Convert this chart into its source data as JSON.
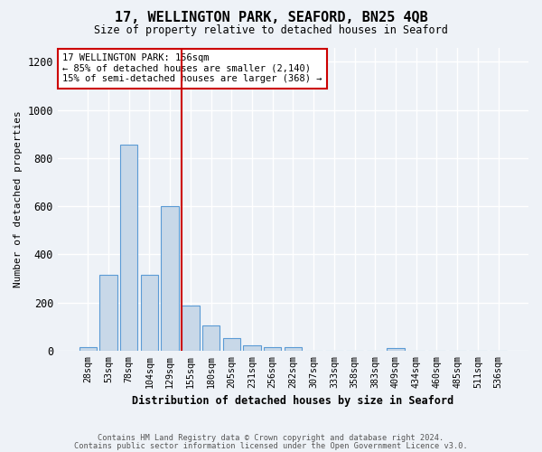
{
  "title": "17, WELLINGTON PARK, SEAFORD, BN25 4QB",
  "subtitle": "Size of property relative to detached houses in Seaford",
  "xlabel": "Distribution of detached houses by size in Seaford",
  "ylabel": "Number of detached properties",
  "footer1": "Contains HM Land Registry data © Crown copyright and database right 2024.",
  "footer2": "Contains public sector information licensed under the Open Government Licence v3.0.",
  "categories": [
    "28sqm",
    "53sqm",
    "78sqm",
    "104sqm",
    "129sqm",
    "155sqm",
    "180sqm",
    "205sqm",
    "231sqm",
    "256sqm",
    "282sqm",
    "307sqm",
    "333sqm",
    "358sqm",
    "383sqm",
    "409sqm",
    "434sqm",
    "460sqm",
    "485sqm",
    "511sqm",
    "536sqm"
  ],
  "values": [
    15,
    315,
    855,
    315,
    600,
    185,
    105,
    50,
    20,
    15,
    15,
    0,
    0,
    0,
    0,
    10,
    0,
    0,
    0,
    0,
    0
  ],
  "bar_color": "#c8d8e8",
  "bar_edge_color": "#5b9bd5",
  "highlight_bar_index": 5,
  "highlight_line_color": "#cc0000",
  "annotation_text": "17 WELLINGTON PARK: 156sqm\n← 85% of detached houses are smaller (2,140)\n15% of semi-detached houses are larger (368) →",
  "annotation_box_color": "#ffffff",
  "annotation_box_edge_color": "#cc0000",
  "ylim": [
    0,
    1260
  ],
  "yticks": [
    0,
    200,
    400,
    600,
    800,
    1000,
    1200
  ],
  "background_color": "#eef2f7",
  "plot_background_color": "#eef2f7",
  "grid_color": "#ffffff"
}
